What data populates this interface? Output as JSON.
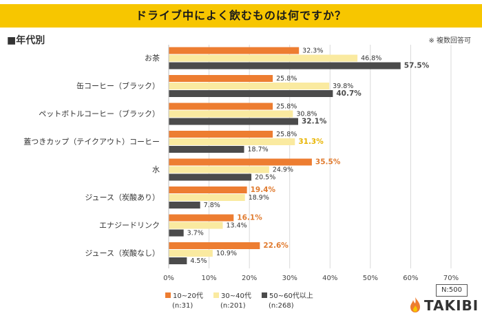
{
  "header": {
    "title": "ドライブ中によく飲むものは何ですか？",
    "subtitle": "■年代別",
    "note": "※ 複数回答可"
  },
  "colors": {
    "title_bar": "#F7C600",
    "series_1": "#ED7D31",
    "series_2": "#FAEAA0",
    "series_3": "#4B4B4B",
    "highlight_1": "#E07A2E",
    "highlight_2": "#E8B400",
    "grid": "#D9D9D9"
  },
  "chart_data": {
    "type": "bar",
    "orientation": "horizontal",
    "title": "ドライブ中によく飲むものは何ですか？",
    "categories": [
      "お茶",
      "缶コーヒー（ブラック）",
      "ペットボトルコーヒー（ブラック）",
      "蓋つきカップ（テイクアウト）コーヒー",
      "水",
      "ジュース（炭酸あり）",
      "エナジードリンク",
      "ジュース（炭酸なし）"
    ],
    "series": [
      {
        "name": "10~20代",
        "n": "(n:31)",
        "values": [
          32.3,
          25.8,
          25.8,
          25.8,
          35.5,
          19.4,
          16.1,
          22.6
        ]
      },
      {
        "name": "30~40代",
        "n": "(n:201)",
        "values": [
          46.8,
          39.8,
          30.8,
          31.3,
          24.9,
          18.9,
          13.4,
          10.9
        ]
      },
      {
        "name": "50~60代以上",
        "n": "(n:268)",
        "values": [
          57.5,
          40.7,
          32.1,
          18.7,
          20.5,
          7.8,
          3.7,
          4.5
        ]
      }
    ],
    "highlights": [
      {
        "category": 0,
        "series": 2
      },
      {
        "category": 1,
        "series": 2
      },
      {
        "category": 2,
        "series": 2
      },
      {
        "category": 3,
        "series": 1
      },
      {
        "category": 4,
        "series": 0
      },
      {
        "category": 5,
        "series": 0
      },
      {
        "category": 6,
        "series": 0
      },
      {
        "category": 7,
        "series": 0
      }
    ],
    "x_ticks": [
      "0%",
      "10%",
      "20%",
      "30%",
      "40%",
      "50%",
      "60%",
      "70%"
    ],
    "xlim": [
      0,
      70
    ],
    "value_suffix": "%",
    "grid": true,
    "legend_position": "bottom"
  },
  "legend": [
    {
      "label": "10~20代",
      "n": "(n:31)"
    },
    {
      "label": "30~40代",
      "n": "(n:201)"
    },
    {
      "label": "50~60代以上",
      "n": "(n:268)"
    }
  ],
  "sample_size": "N:500",
  "brand": {
    "name": "TAKIBI",
    "icon": "flame-icon"
  }
}
